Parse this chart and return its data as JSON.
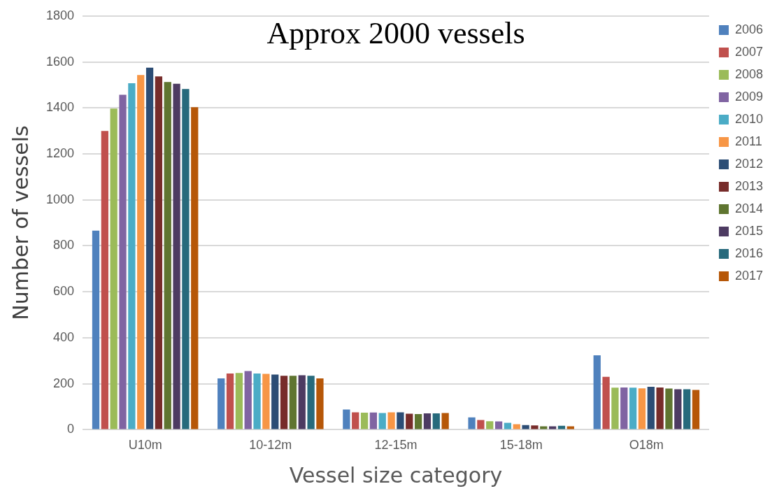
{
  "chart_data": {
    "type": "bar",
    "title": "Approx 2000 vessels",
    "xlabel": "Vessel size category",
    "ylabel": "Number of vessels",
    "categories": [
      "U10m",
      "10-12m",
      "12-15m",
      "15-18m",
      "O18m"
    ],
    "series": [
      {
        "name": "2006",
        "color": "#4f81bd",
        "values": [
          866,
          223,
          88,
          54,
          324
        ]
      },
      {
        "name": "2007",
        "color": "#c0504d",
        "values": [
          1300,
          245,
          76,
          42,
          230
        ]
      },
      {
        "name": "2008",
        "color": "#9bbb59",
        "values": [
          1397,
          247,
          74,
          37,
          183
        ]
      },
      {
        "name": "2009",
        "color": "#8064a2",
        "values": [
          1457,
          255,
          75,
          36,
          184
        ]
      },
      {
        "name": "2010",
        "color": "#4bacc6",
        "values": [
          1507,
          245,
          73,
          30,
          183
        ]
      },
      {
        "name": "2011",
        "color": "#f79646",
        "values": [
          1543,
          243,
          76,
          24,
          180
        ]
      },
      {
        "name": "2012",
        "color": "#2c4d75",
        "values": [
          1575,
          240,
          76,
          20,
          187
        ]
      },
      {
        "name": "2013",
        "color": "#772c2a",
        "values": [
          1537,
          235,
          70,
          19,
          184
        ]
      },
      {
        "name": "2014",
        "color": "#5f7530",
        "values": [
          1513,
          235,
          68,
          15,
          179
        ]
      },
      {
        "name": "2015",
        "color": "#4d3b62",
        "values": [
          1505,
          237,
          71,
          15,
          176
        ]
      },
      {
        "name": "2016",
        "color": "#276a7c",
        "values": [
          1482,
          235,
          71,
          17,
          176
        ]
      },
      {
        "name": "2017",
        "color": "#b65708",
        "values": [
          1403,
          223,
          73,
          15,
          173
        ]
      }
    ],
    "ylim": [
      0,
      1800
    ],
    "yticks": [
      0,
      200,
      400,
      600,
      800,
      1000,
      1200,
      1400,
      1600,
      1800
    ],
    "grid": "y",
    "legend": "right"
  }
}
